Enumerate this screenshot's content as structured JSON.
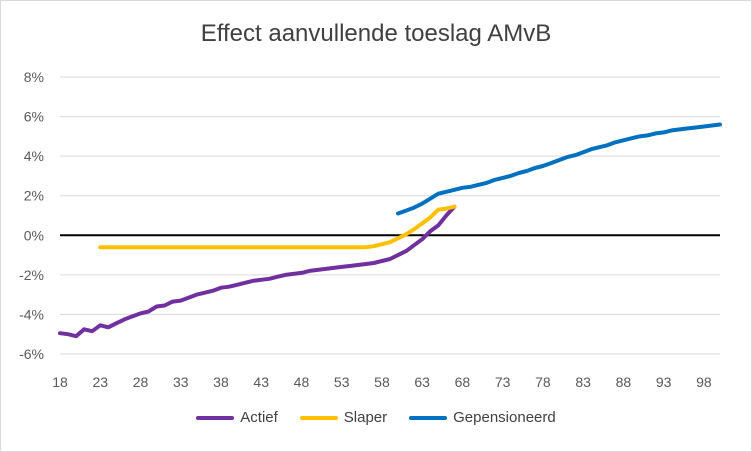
{
  "chart_data": {
    "type": "line",
    "title": "Effect aanvullende toeslag AMvB",
    "xlabel": "",
    "ylabel": "",
    "xlim": [
      18,
      100
    ],
    "ylim": [
      -6,
      8
    ],
    "x_ticks": [
      "18",
      "23",
      "28",
      "33",
      "38",
      "43",
      "48",
      "53",
      "58",
      "63",
      "68",
      "73",
      "78",
      "83",
      "88",
      "93",
      "98"
    ],
    "y_ticks": [
      "-6%",
      "-4%",
      "-2%",
      "0%",
      "2%",
      "4%",
      "6%",
      "8%"
    ],
    "grid": true,
    "legend_position": "bottom",
    "series": [
      {
        "name": "Actief",
        "color": "#7030A0",
        "x": [
          18,
          19,
          20,
          21,
          22,
          23,
          24,
          25,
          26,
          27,
          28,
          29,
          30,
          31,
          32,
          33,
          34,
          35,
          36,
          37,
          38,
          39,
          40,
          41,
          42,
          43,
          44,
          45,
          46,
          47,
          48,
          49,
          50,
          51,
          52,
          53,
          54,
          55,
          56,
          57,
          58,
          59,
          60,
          61,
          62,
          63,
          64,
          65,
          66,
          67
        ],
        "y": [
          -4.95,
          -5.0,
          -5.1,
          -4.75,
          -4.85,
          -4.55,
          -4.65,
          -4.45,
          -4.25,
          -4.1,
          -3.95,
          -3.85,
          -3.6,
          -3.55,
          -3.35,
          -3.3,
          -3.15,
          -3.0,
          -2.9,
          -2.8,
          -2.65,
          -2.6,
          -2.5,
          -2.4,
          -2.3,
          -2.25,
          -2.2,
          -2.1,
          -2.0,
          -1.95,
          -1.9,
          -1.8,
          -1.75,
          -1.7,
          -1.65,
          -1.6,
          -1.55,
          -1.5,
          -1.45,
          -1.4,
          -1.3,
          -1.2,
          -1.0,
          -0.8,
          -0.5,
          -0.2,
          0.2,
          0.5,
          1.0,
          1.45
        ]
      },
      {
        "name": "Slaper",
        "color": "#FFC000",
        "x": [
          23,
          25,
          30,
          35,
          40,
          45,
          50,
          55,
          56,
          57,
          58,
          59,
          60,
          61,
          62,
          63,
          64,
          65,
          66,
          67
        ],
        "y": [
          -0.6,
          -0.6,
          -0.6,
          -0.6,
          -0.6,
          -0.6,
          -0.6,
          -0.6,
          -0.6,
          -0.55,
          -0.45,
          -0.35,
          -0.15,
          0.05,
          0.3,
          0.6,
          0.9,
          1.3,
          1.35,
          1.45
        ]
      },
      {
        "name": "Gepensioneerd",
        "color": "#0070C0",
        "x": [
          60,
          61,
          62,
          63,
          64,
          65,
          66,
          67,
          68,
          69,
          70,
          71,
          72,
          73,
          74,
          75,
          76,
          77,
          78,
          79,
          80,
          81,
          82,
          83,
          84,
          85,
          86,
          87,
          88,
          89,
          90,
          91,
          92,
          93,
          94,
          95,
          96,
          97,
          98,
          99,
          100
        ],
        "y": [
          1.1,
          1.25,
          1.4,
          1.6,
          1.85,
          2.1,
          2.2,
          2.3,
          2.4,
          2.45,
          2.55,
          2.65,
          2.8,
          2.9,
          3.0,
          3.15,
          3.25,
          3.4,
          3.5,
          3.65,
          3.8,
          3.95,
          4.05,
          4.2,
          4.35,
          4.45,
          4.55,
          4.7,
          4.8,
          4.9,
          5.0,
          5.05,
          5.15,
          5.2,
          5.3,
          5.35,
          5.4,
          5.45,
          5.5,
          5.55,
          5.6
        ]
      }
    ]
  }
}
